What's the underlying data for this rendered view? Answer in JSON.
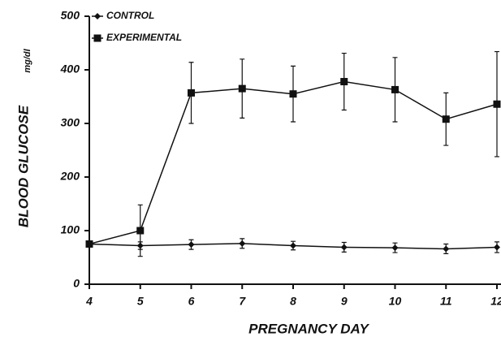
{
  "chart_data": {
    "type": "line",
    "y_label": "BLOOD GLUCOSE",
    "y_unit": "mg/dl",
    "x_label": "PREGNANCY DAY",
    "x": [
      4,
      5,
      6,
      7,
      8,
      9,
      10,
      11,
      12
    ],
    "xlim": [
      4,
      12
    ],
    "xticks": [
      4,
      5,
      6,
      7,
      8,
      9,
      10,
      11,
      12
    ],
    "ylim": [
      0,
      500
    ],
    "yticks": [
      0,
      100,
      200,
      300,
      400,
      500
    ],
    "series": [
      {
        "name": "CONTROL",
        "color": "#111111",
        "marker": "diamond",
        "values": [
          75,
          72,
          74,
          76,
          72,
          69,
          68,
          66,
          69
        ],
        "errors": [
          0,
          7,
          9,
          9,
          8,
          9,
          9,
          9,
          10
        ]
      },
      {
        "name": "EXPERIMENTAL",
        "color": "#111111",
        "marker": "square",
        "values": [
          75,
          100,
          357,
          365,
          355,
          378,
          363,
          308,
          336
        ],
        "errors": [
          0,
          48,
          57,
          55,
          52,
          53,
          60,
          49,
          98
        ]
      }
    ]
  }
}
